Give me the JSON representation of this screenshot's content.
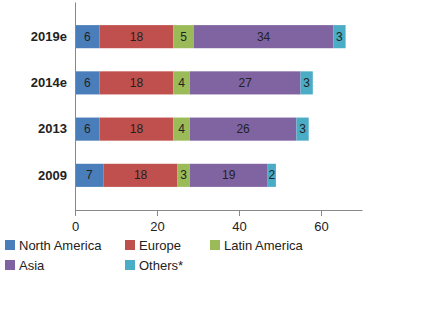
{
  "chart_data": {
    "type": "bar",
    "orientation": "horizontal",
    "stacked": true,
    "data_labels": true,
    "categories": [
      "2019e",
      "2014e",
      "2013",
      "2009"
    ],
    "series": [
      {
        "name": "North America",
        "color": "#4a7ebb",
        "values": [
          6,
          6,
          6,
          7
        ]
      },
      {
        "name": "Europe",
        "color": "#c0504d",
        "values": [
          18,
          18,
          18,
          18
        ]
      },
      {
        "name": "Latin America",
        "color": "#9bbb59",
        "values": [
          5,
          4,
          4,
          3
        ]
      },
      {
        "name": "Asia",
        "color": "#8064a2",
        "values": [
          34,
          27,
          26,
          19
        ]
      },
      {
        "name": "Others*",
        "color": "#4bacc6",
        "values": [
          3,
          3,
          3,
          2
        ]
      }
    ],
    "xlim": [
      0,
      70
    ],
    "xticks": [
      0,
      20,
      40,
      60
    ],
    "grid": false,
    "legend": "bottom"
  }
}
